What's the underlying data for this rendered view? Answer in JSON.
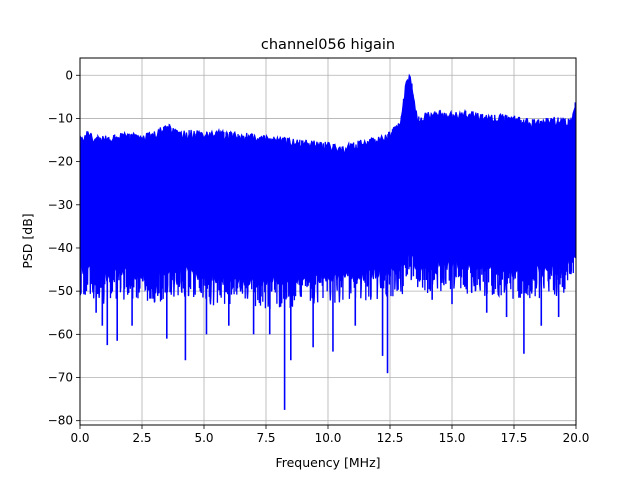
{
  "chart_data": {
    "type": "line",
    "title": "channel056 higain",
    "xlabel": "Frequency [MHz]",
    "ylabel": "PSD [dB]",
    "xlim": [
      0,
      20
    ],
    "ylim": [
      -81,
      4
    ],
    "grid": true,
    "x_ticks": [
      0,
      2.5,
      5,
      7.5,
      10,
      12.5,
      15,
      17.5,
      20
    ],
    "x_tick_labels": [
      "0.0",
      "2.5",
      "5.0",
      "7.5",
      "10.0",
      "12.5",
      "15.0",
      "17.5",
      "20.0"
    ],
    "y_ticks": [
      0,
      -10,
      -20,
      -30,
      -40,
      -50,
      -60,
      -70,
      -80
    ],
    "y_tick_labels": [
      "0",
      "−10",
      "−20",
      "−30",
      "−40",
      "−50",
      "−60",
      "−70",
      "−80"
    ],
    "series": [
      {
        "color": "#0000ff",
        "upper_envelope": {
          "x": [
            0,
            0.3,
            0.7,
            1.0,
            1.5,
            2.0,
            2.5,
            3.0,
            3.5,
            4.0,
            4.5,
            5.0,
            5.5,
            6.0,
            6.5,
            7.0,
            7.5,
            8.0,
            8.5,
            9.0,
            9.5,
            10.0,
            10.5,
            11.0,
            11.5,
            12.0,
            12.5,
            12.9,
            13.0,
            13.1,
            13.2,
            13.3,
            13.4,
            13.5,
            13.6,
            13.8,
            14.0,
            14.5,
            15.0,
            15.5,
            16.0,
            16.5,
            17.0,
            17.5,
            18.0,
            18.5,
            19.0,
            19.5,
            19.8,
            19.9,
            20.0
          ],
          "y": [
            -14,
            -13,
            -13.5,
            -14,
            -13.5,
            -13,
            -13.5,
            -13,
            -11,
            -13,
            -12.5,
            -13,
            -12.5,
            -13,
            -13,
            -13.5,
            -14,
            -14,
            -14.5,
            -15,
            -15,
            -15.5,
            -16,
            -15.5,
            -14.5,
            -14,
            -13,
            -10.5,
            -7,
            -3,
            0,
            0,
            -2,
            -6,
            -9,
            -9,
            -8.5,
            -8,
            -8.5,
            -8,
            -8.5,
            -9,
            -9,
            -9.5,
            -10,
            -10,
            -9.5,
            -10,
            -10,
            -7.5,
            -5.5
          ]
        },
        "lower_envelope": {
          "x": [
            0,
            0.5,
            1.0,
            1.5,
            2.0,
            2.5,
            3.0,
            3.5,
            4.0,
            4.5,
            5.0,
            5.5,
            6.0,
            6.5,
            7.0,
            7.5,
            8.0,
            8.5,
            9.0,
            9.5,
            10.0,
            10.5,
            11.0,
            11.5,
            12.0,
            12.5,
            13.0,
            13.3,
            13.5,
            14.0,
            14.5,
            15.0,
            15.5,
            16.0,
            16.5,
            17.0,
            17.5,
            18.0,
            18.5,
            19.0,
            19.5,
            20.0
          ],
          "y": [
            -46,
            -47,
            -48,
            -47.5,
            -47,
            -47.5,
            -48,
            -47,
            -46.5,
            -47,
            -48,
            -48.5,
            -48,
            -48.5,
            -49,
            -49.5,
            -49,
            -49,
            -48.5,
            -48,
            -48,
            -48,
            -48,
            -47.5,
            -47,
            -46.5,
            -46,
            -42,
            -45,
            -45.5,
            -45,
            -45,
            -45.5,
            -46,
            -46.5,
            -47,
            -47,
            -47.5,
            -47,
            -46.5,
            -46,
            -40
          ]
        },
        "deep_dips": {
          "x": [
            0.65,
            0.9,
            1.1,
            1.5,
            2.1,
            3.5,
            4.25,
            5.1,
            6.0,
            7.0,
            7.65,
            8.25,
            8.5,
            9.4,
            10.2,
            11.1,
            12.2,
            12.4,
            13.3,
            14.2,
            15.0,
            16.4,
            17.2,
            17.9,
            18.6,
            19.3
          ],
          "y": [
            -55,
            -58,
            -62.5,
            -61.5,
            -58,
            -61,
            -66,
            -60,
            -58,
            -60,
            -60,
            -77.5,
            -66,
            -63,
            -64,
            -58,
            -65,
            -69,
            -40,
            -52,
            -53,
            -55,
            -56,
            -64.5,
            -58,
            -56
          ]
        }
      }
    ]
  }
}
